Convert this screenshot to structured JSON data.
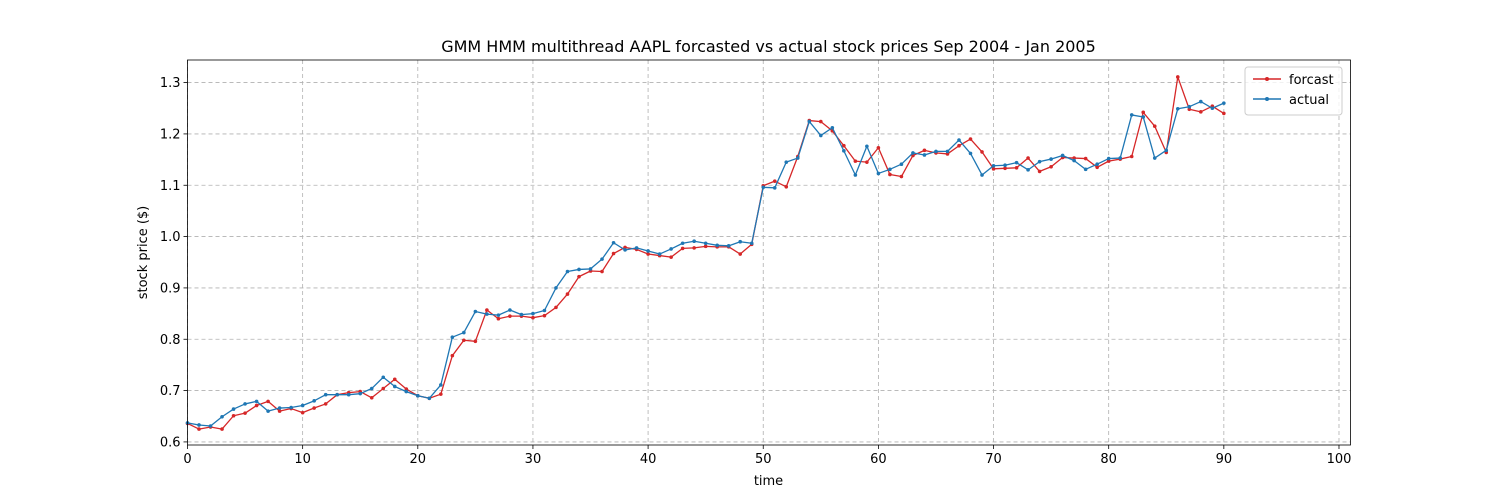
{
  "chart_data": {
    "type": "line",
    "title": "GMM HMM multithread AAPL forcasted vs actual stock prices Sep 2004 - Jan 2005",
    "xlabel": "time",
    "ylabel": "stock price ($)",
    "xlim": [
      0,
      101
    ],
    "ylim": [
      0.594,
      1.344
    ],
    "xticks": [
      0,
      10,
      20,
      30,
      40,
      50,
      60,
      70,
      80,
      90,
      100
    ],
    "yticks": [
      0.6,
      0.7,
      0.8,
      0.9,
      1.0,
      1.1,
      1.2,
      1.3
    ],
    "ytick_labels": [
      "0.6",
      "0.7",
      "0.8",
      "0.9",
      "1.0",
      "1.1",
      "1.2",
      "1.3"
    ],
    "grid": true,
    "legend_position": "top-right",
    "series": [
      {
        "name": "forcast",
        "color": "#d62728",
        "values": [
          0.636,
          0.625,
          0.629,
          0.625,
          0.651,
          0.656,
          0.671,
          0.679,
          0.66,
          0.665,
          0.657,
          0.666,
          0.674,
          0.692,
          0.696,
          0.698,
          0.686,
          0.704,
          0.722,
          0.703,
          0.69,
          0.685,
          0.693,
          0.768,
          0.798,
          0.796,
          0.857,
          0.84,
          0.845,
          0.845,
          0.842,
          0.846,
          0.862,
          0.888,
          0.922,
          0.933,
          0.932,
          0.967,
          0.979,
          0.975,
          0.966,
          0.963,
          0.96,
          0.977,
          0.978,
          0.981,
          0.98,
          0.98,
          0.966,
          0.985,
          1.099,
          1.108,
          1.097,
          1.156,
          1.226,
          1.224,
          1.206,
          1.177,
          1.147,
          1.145,
          1.173,
          1.121,
          1.117,
          1.158,
          1.168,
          1.163,
          1.161,
          1.177,
          1.19,
          1.165,
          1.132,
          1.133,
          1.134,
          1.153,
          1.127,
          1.136,
          1.154,
          1.153,
          1.152,
          1.135,
          1.147,
          1.151,
          1.156,
          1.242,
          1.215,
          1.164,
          1.311,
          1.248,
          1.243,
          1.254,
          1.24
        ]
      },
      {
        "name": "actual",
        "color": "#1f77b4",
        "values": [
          0.637,
          0.633,
          0.631,
          0.649,
          0.664,
          0.674,
          0.679,
          0.66,
          0.666,
          0.667,
          0.671,
          0.68,
          0.692,
          0.692,
          0.692,
          0.694,
          0.704,
          0.726,
          0.708,
          0.698,
          0.69,
          0.685,
          0.711,
          0.804,
          0.813,
          0.854,
          0.849,
          0.847,
          0.857,
          0.848,
          0.85,
          0.856,
          0.9,
          0.932,
          0.936,
          0.937,
          0.956,
          0.988,
          0.974,
          0.978,
          0.972,
          0.966,
          0.976,
          0.987,
          0.991,
          0.987,
          0.983,
          0.982,
          0.99,
          0.987,
          1.096,
          1.095,
          1.145,
          1.153,
          1.224,
          1.197,
          1.212,
          1.167,
          1.12,
          1.176,
          1.123,
          1.131,
          1.141,
          1.163,
          1.159,
          1.166,
          1.166,
          1.188,
          1.162,
          1.12,
          1.138,
          1.139,
          1.144,
          1.13,
          1.146,
          1.151,
          1.158,
          1.148,
          1.131,
          1.141,
          1.152,
          1.153,
          1.237,
          1.233,
          1.153,
          1.168,
          1.249,
          1.253,
          1.263,
          1.25,
          1.26
        ]
      }
    ]
  }
}
